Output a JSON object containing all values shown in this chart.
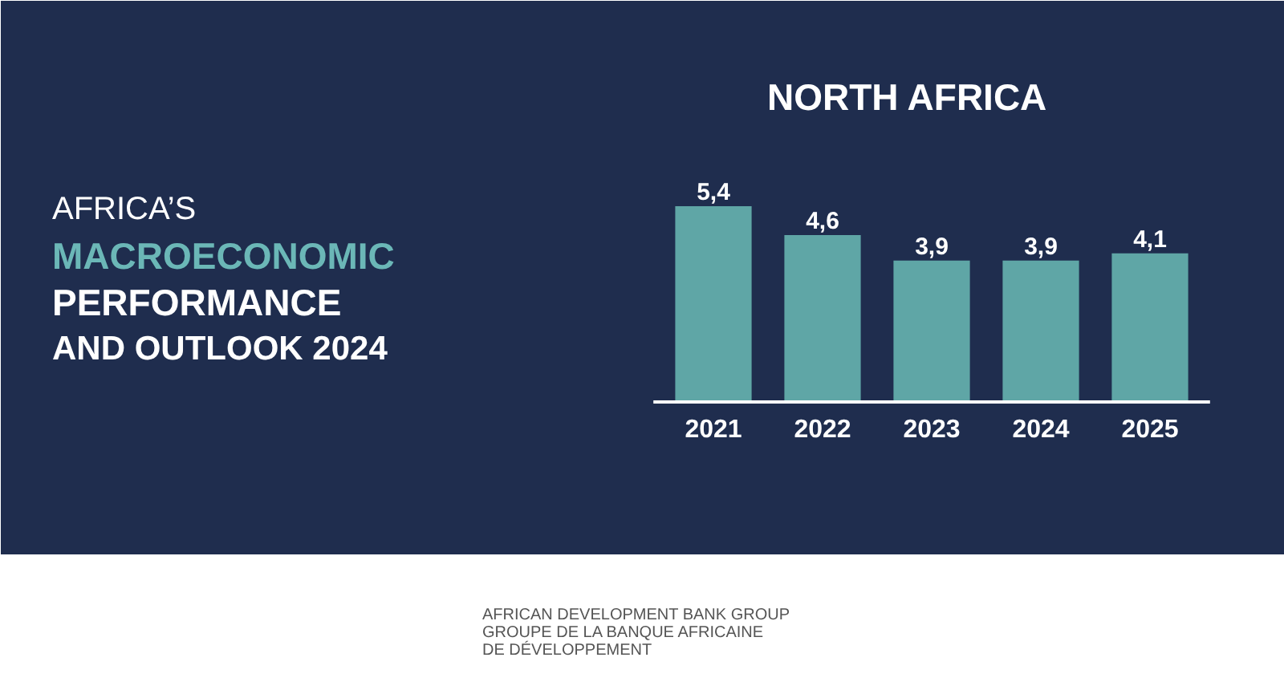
{
  "chart_data": {
    "type": "bar",
    "title": "NORTH AFRICA",
    "subtitle": "AFRICA’S\nMACROECONOMIC\nPERFORMANCE\nAND OUTLOOK 2024",
    "categories": [
      "2021",
      "2022",
      "2023",
      "2024",
      "2025"
    ],
    "values": [
      5.4,
      4.6,
      3.9,
      3.9,
      4.1
    ],
    "value_labels": [
      "5,4",
      "4,6",
      "3,9",
      "3,9",
      "4,1"
    ],
    "color": "#5fa6a6",
    "annotations": [
      "AFRICAN DEVELOPMENT BANK GROUP",
      "GROUPE DE LA BANQUE AFRICAINE",
      "DE DÉVELOPPEMENT"
    ]
  }
}
